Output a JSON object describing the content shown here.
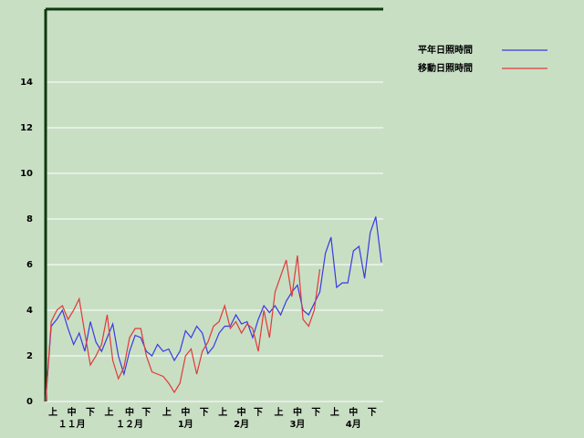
{
  "chart_data": {
    "type": "line",
    "x": [
      0,
      3,
      6,
      9,
      12,
      15,
      18,
      21,
      24,
      27,
      30,
      33,
      36,
      39,
      42,
      45,
      48,
      51,
      54,
      57,
      60,
      63,
      66,
      69,
      72,
      75,
      78,
      81,
      84,
      87,
      90,
      93,
      96,
      99,
      102,
      105,
      108,
      111,
      114,
      117,
      120,
      123,
      126,
      129,
      132,
      135,
      138,
      141,
      144,
      147,
      150,
      153,
      156,
      159,
      162,
      165,
      168,
      171,
      174,
      177,
      180
    ],
    "series": [
      {
        "name": "平年日照時間",
        "color": "#3a3ae0",
        "values": [
          0,
          3.3,
          3.6,
          4.0,
          3.2,
          2.5,
          3.0,
          2.2,
          3.5,
          2.6,
          2.2,
          2.8,
          3.4,
          2.0,
          1.2,
          2.2,
          2.9,
          2.8,
          2.2,
          2.0,
          2.5,
          2.2,
          2.3,
          1.8,
          2.2,
          3.1,
          2.8,
          3.3,
          3.0,
          2.1,
          2.4,
          3.0,
          3.3,
          3.3,
          3.8,
          3.4,
          3.5,
          2.8,
          3.6,
          4.2,
          3.9,
          4.2,
          3.8,
          4.4,
          4.8,
          5.1,
          4.0,
          3.8,
          4.3,
          4.8,
          6.5,
          7.2,
          5.0,
          5.2,
          5.2,
          6.6,
          6.8,
          5.4,
          7.4,
          8.1,
          6.1
        ]
      },
      {
        "name": "移動日照時間",
        "color": "#e03a3a",
        "values": [
          0,
          3.5,
          4.0,
          4.2,
          3.6,
          4.0,
          4.5,
          3.0,
          1.6,
          2.0,
          2.5,
          3.8,
          1.8,
          1.0,
          1.5,
          2.8,
          3.2,
          3.2,
          2.0,
          1.3,
          1.2,
          1.1,
          0.8,
          0.4,
          0.8,
          2.0,
          2.3,
          1.2,
          2.2,
          2.6,
          3.3,
          3.5,
          4.2,
          3.2,
          3.5,
          3.0,
          3.4,
          3.2,
          2.2,
          4.0,
          2.8,
          4.8,
          5.5,
          6.2,
          4.6,
          6.4,
          3.6,
          3.3,
          4.0,
          5.8,
          null,
          null,
          null,
          null,
          null,
          null,
          null,
          null,
          null,
          null,
          null
        ]
      }
    ],
    "xlim": [
      0,
      181
    ],
    "xticks": [
      {
        "value": 4,
        "label": "上"
      },
      {
        "value": 14,
        "label": "中"
      },
      {
        "value": 24,
        "label": "下"
      },
      {
        "value": 34,
        "label": "上"
      },
      {
        "value": 45,
        "label": "中"
      },
      {
        "value": 54,
        "label": "下"
      },
      {
        "value": 65,
        "label": "上"
      },
      {
        "value": 75,
        "label": "中"
      },
      {
        "value": 85,
        "label": "下"
      },
      {
        "value": 95,
        "label": "上"
      },
      {
        "value": 105,
        "label": "中"
      },
      {
        "value": 114,
        "label": "下"
      },
      {
        "value": 125,
        "label": "上"
      },
      {
        "value": 135,
        "label": "中"
      },
      {
        "value": 145,
        "label": "下"
      },
      {
        "value": 155,
        "label": "上"
      },
      {
        "value": 165,
        "label": "中"
      },
      {
        "value": 175,
        "label": "下"
      }
    ],
    "month_ticks": [
      {
        "value": 14,
        "label": "１１月"
      },
      {
        "value": 45,
        "label": "１２月"
      },
      {
        "value": 75,
        "label": "1月"
      },
      {
        "value": 105,
        "label": "2月"
      },
      {
        "value": 135,
        "label": "3月"
      },
      {
        "value": 165,
        "label": "4月"
      }
    ],
    "ylim": [
      0,
      17.2
    ],
    "yticks": [
      0,
      2,
      4,
      6,
      8,
      10,
      12,
      14
    ],
    "grid": true
  }
}
